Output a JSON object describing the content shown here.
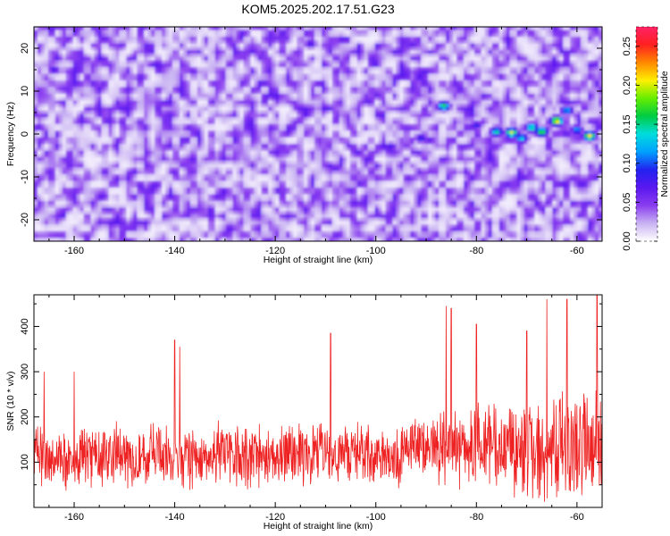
{
  "title": "KOM5.2025.202.17.51.G23",
  "colors": {
    "snr_line": "#ee2222",
    "colormap": [
      "#ffffff",
      "#c9b3f2",
      "#8a3df0",
      "#5a18f0",
      "#2222ee",
      "#00a0ff",
      "#00dddd",
      "#00cc44",
      "#66ee00",
      "#ffee00",
      "#ff8800",
      "#ff2020",
      "#ff2266"
    ]
  },
  "chart_data": [
    {
      "type": "heatmap",
      "title": "KOM5.2025.202.17.51.G23",
      "xlabel": "Height of straight line (km)",
      "ylabel": "Frequency (Hz)",
      "xlim": [
        -168,
        -55
      ],
      "ylim": [
        -25,
        25
      ],
      "xticks": [
        -160,
        -140,
        -120,
        -100,
        -80,
        -60
      ],
      "yticks": [
        -20,
        -10,
        0,
        10,
        20
      ],
      "xtick_labels": [
        "-160",
        "-140",
        "-120",
        "-100",
        "-80",
        "-60"
      ],
      "ytick_labels": [
        "-20",
        "-10",
        "0",
        "10",
        "20"
      ],
      "colorbar": {
        "label": "Normalized spectral amplitude",
        "range": [
          0,
          0.275
        ],
        "ticks": [
          0,
          0.05,
          0.1,
          0.15,
          0.2,
          0.25
        ],
        "tick_labels": [
          "0.00",
          "0.05",
          "0.10",
          "0.15",
          "0.20",
          "0.25"
        ]
      },
      "background_level": 0.035,
      "hotspots": [
        {
          "x": -86.5,
          "y": 6.5,
          "value": 0.17
        },
        {
          "x": -76,
          "y": 0.5,
          "value": 0.15
        },
        {
          "x": -73,
          "y": 0.3,
          "value": 0.2
        },
        {
          "x": -71,
          "y": -1,
          "value": 0.14
        },
        {
          "x": -69,
          "y": 1.5,
          "value": 0.16
        },
        {
          "x": -67,
          "y": 0.5,
          "value": 0.18
        },
        {
          "x": -64,
          "y": 3,
          "value": 0.22
        },
        {
          "x": -62,
          "y": 5.5,
          "value": 0.13
        },
        {
          "x": -60,
          "y": 1,
          "value": 0.12
        },
        {
          "x": -57.5,
          "y": -0.5,
          "value": 0.21
        },
        {
          "x": -80,
          "y": 2,
          "value": 0.09
        },
        {
          "x": -91,
          "y": -1,
          "value": 0.09
        },
        {
          "x": -97,
          "y": -3,
          "value": 0.08
        },
        {
          "x": -113,
          "y": 21,
          "value": 0.08
        },
        {
          "x": -164,
          "y": 15,
          "value": 0.08
        },
        {
          "x": -108,
          "y": -8,
          "value": 0.07
        }
      ]
    },
    {
      "type": "line",
      "xlabel": "Height of straight line (km)",
      "ylabel": "SNR (10 * v/v)",
      "xlim": [
        -168,
        -55
      ],
      "ylim": [
        0,
        470
      ],
      "xticks": [
        -160,
        -140,
        -120,
        -100,
        -80,
        -60
      ],
      "yticks": [
        100,
        200,
        300,
        400
      ],
      "xtick_labels": [
        "-160",
        "-140",
        "-120",
        "-100",
        "-80",
        "-60"
      ],
      "ytick_labels": [
        "100",
        "200",
        "300",
        "400"
      ],
      "baseline_mean": 115,
      "spread_note_points": [
        {
          "x": -166,
          "y": 300
        },
        {
          "x": -160,
          "y": 300
        },
        {
          "x": -140,
          "y": 370
        },
        {
          "x": -139,
          "y": 355
        },
        {
          "x": -109,
          "y": 385
        },
        {
          "x": -86,
          "y": 445
        },
        {
          "x": -85,
          "y": 440
        },
        {
          "x": -80,
          "y": 405
        },
        {
          "x": -70,
          "y": 390
        },
        {
          "x": -66,
          "y": 460
        },
        {
          "x": -62,
          "y": 460
        },
        {
          "x": -56,
          "y": 470
        }
      ]
    }
  ]
}
